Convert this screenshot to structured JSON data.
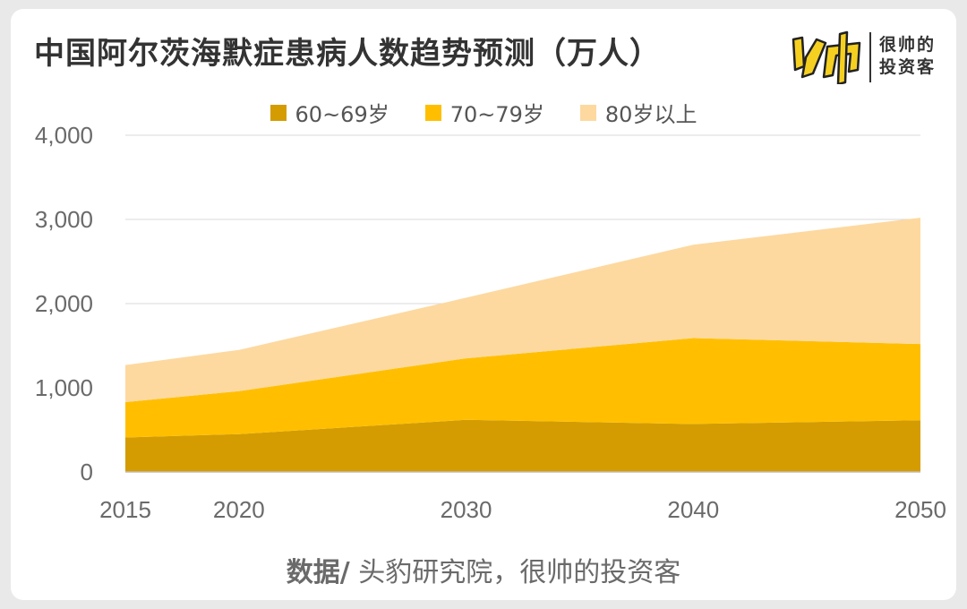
{
  "title": "中国阿尔茨海默症患病人数趋势预测（万人）",
  "logo": {
    "line1": "很帅的",
    "line2": "投资客"
  },
  "source": {
    "prefix": "数据/",
    "text": " 头豹研究院，很帅的投资客"
  },
  "colors": {
    "series_60_69": "#d49c00",
    "series_70_79": "#ffbf00",
    "series_80_plus": "#fdd9a0",
    "grid": "#d9d9d9",
    "axis_text": "#6a6a6a",
    "logo_yellow": "#f5d020"
  },
  "chart_data": {
    "type": "area",
    "stacked": true,
    "categories": [
      "2015",
      "2020",
      "2030",
      "2040",
      "2050"
    ],
    "series": [
      {
        "name": "60~69岁",
        "values": [
          410,
          450,
          620,
          570,
          615
        ]
      },
      {
        "name": "70~79岁",
        "values": [
          420,
          510,
          730,
          1020,
          905
        ]
      },
      {
        "name": "80岁以上",
        "values": [
          440,
          490,
          720,
          1110,
          1500
        ]
      }
    ],
    "ylim": [
      0,
      4000
    ],
    "yticks": [
      "0",
      "1,000",
      "2,000",
      "3,000",
      "4,000"
    ],
    "yticks_values": [
      0,
      1000,
      2000,
      3000,
      4000
    ],
    "grid": true,
    "legend_position": "top-center",
    "xlabel": "",
    "ylabel": ""
  }
}
